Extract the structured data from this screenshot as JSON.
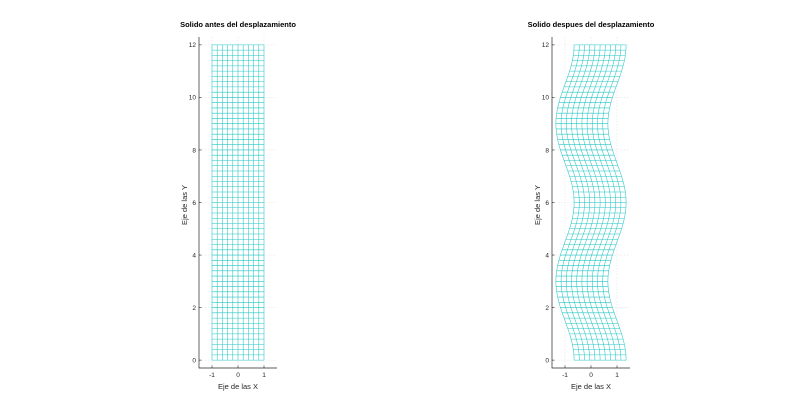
{
  "chart_data": [
    {
      "type": "line",
      "title": "Solido antes del desplazamiento",
      "xlabel": "Eje de las X",
      "ylabel": "Eje de las Y",
      "xlim": [
        -1.5,
        1.5
      ],
      "ylim": [
        -0.3,
        12.3
      ],
      "xticks": [
        -1,
        0,
        1
      ],
      "xtick_labels": [
        "-1",
        "0",
        "1"
      ],
      "yticks": [
        0,
        2,
        4,
        6,
        8,
        10,
        12
      ],
      "ytick_labels": [
        "0",
        "2",
        "4",
        "6",
        "8",
        "10",
        "12"
      ],
      "grid": true,
      "legend": "none",
      "mesh": {
        "x_range": [
          -1,
          1
        ],
        "y_range": [
          0,
          12
        ],
        "columns": 10,
        "rows": 60,
        "displacement": "none"
      },
      "color": "#26c6c6"
    },
    {
      "type": "line",
      "title": "Solido despues del desplazamiento",
      "xlabel": "Eje de las X",
      "ylabel": "Eje de las Y",
      "xlim": [
        -1.5,
        1.5
      ],
      "ylim": [
        -0.3,
        12.3
      ],
      "xticks": [
        -1,
        0,
        1
      ],
      "xtick_labels": [
        "-1",
        "0",
        "1"
      ],
      "yticks": [
        0,
        2,
        4,
        6,
        8,
        10,
        12
      ],
      "ytick_labels": [
        "0",
        "2",
        "4",
        "6",
        "8",
        "10",
        "12"
      ],
      "grid": true,
      "legend": "none",
      "mesh": {
        "x_range": [
          -1,
          1
        ],
        "y_range": [
          0,
          12
        ],
        "columns": 10,
        "rows": 60,
        "displacement": "sinusoidal-x",
        "amplitude": 0.35,
        "period": 6
      },
      "color": "#26c6c6"
    }
  ]
}
